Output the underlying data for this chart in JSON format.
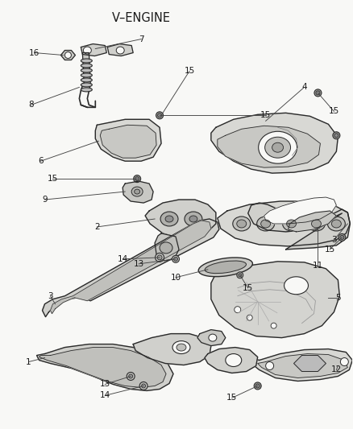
{
  "title": "V–ENGINE",
  "bg": "#f8f8f6",
  "lc": "#2a2a2a",
  "tc": "#1a1a1a",
  "fig_w": 4.38,
  "fig_h": 5.33,
  "dpi": 100,
  "lw": 1.0,
  "label_fs": 7.5,
  "title_fs": 10.5
}
